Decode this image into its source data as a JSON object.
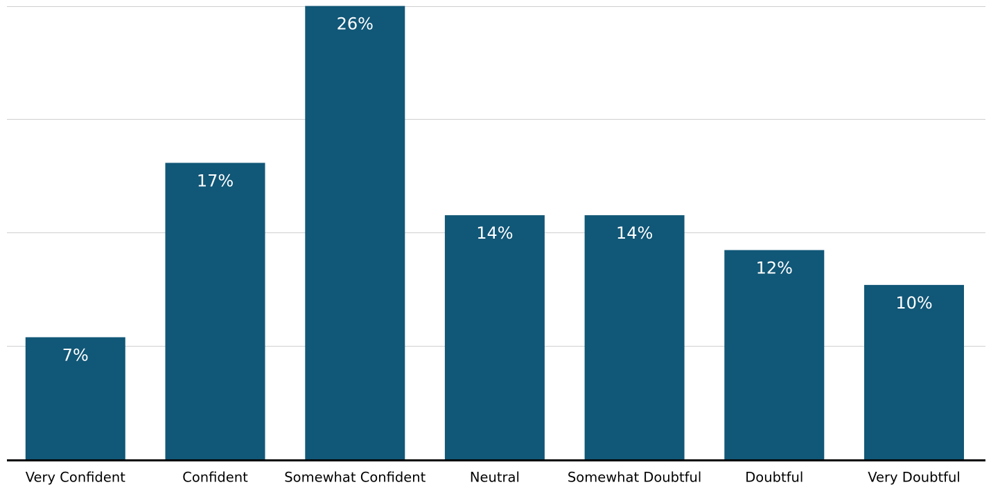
{
  "chart_data": {
    "type": "bar",
    "categories": [
      "Very Confident",
      "Confident",
      "Somewhat Confident",
      "Neutral",
      "Somewhat Doubtful",
      "Doubtful",
      "Very Doubtful"
    ],
    "values": [
      7,
      17,
      26,
      14,
      14,
      12,
      10
    ],
    "data_labels": [
      "7%",
      "17%",
      "26%",
      "14%",
      "14%",
      "12%",
      "10%"
    ],
    "unit": "%",
    "title": "",
    "xlabel": "",
    "ylabel": "",
    "ylim": [
      0,
      26.3
    ],
    "gridlines": [
      6.5,
      13,
      19.5,
      26
    ],
    "grid": true,
    "legend": "none",
    "colors": {
      "bar": "#115777",
      "grid": "#cfcfcf",
      "axis": "#000000",
      "label_text": "#ffffff",
      "category_text": "#000000"
    }
  }
}
